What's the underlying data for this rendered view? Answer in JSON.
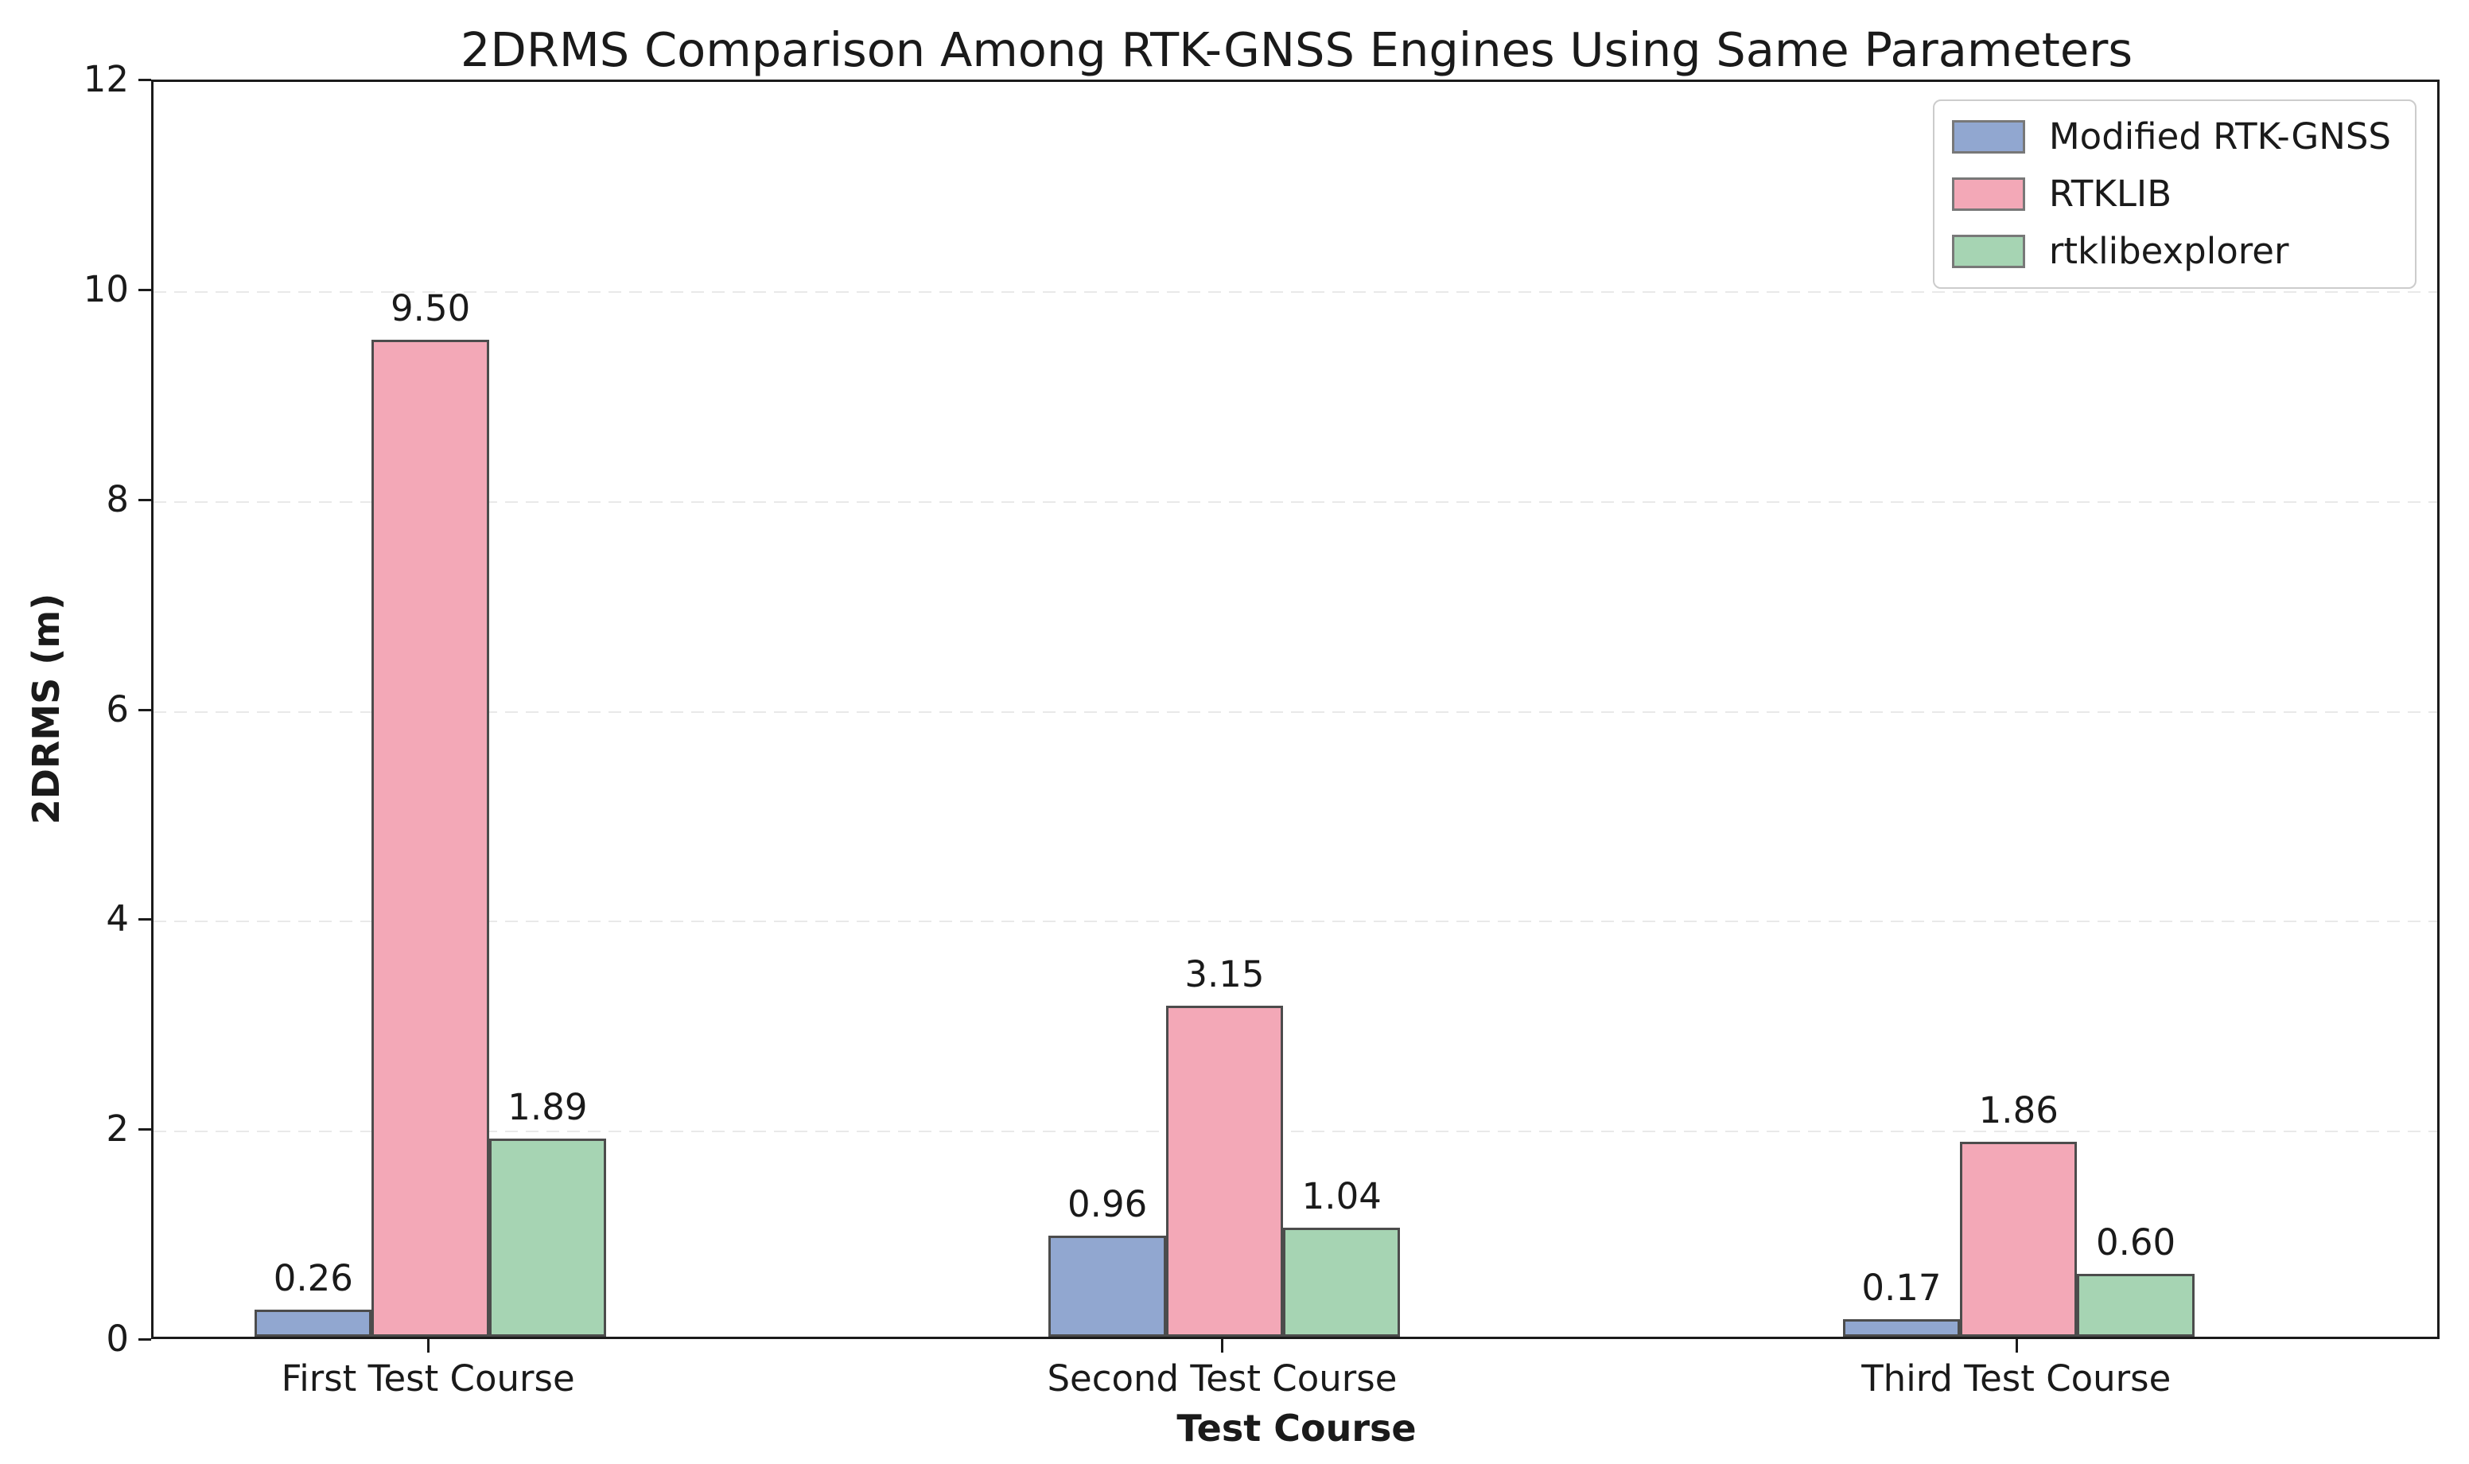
{
  "chart_data": {
    "type": "bar",
    "title": "2DRMS Comparison Among RTK-GNSS Engines Using Same Parameters",
    "xlabel": "Test Course",
    "ylabel": "2DRMS (m)",
    "categories": [
      "First Test Course",
      "Second Test Course",
      "Third Test Course"
    ],
    "series": [
      {
        "name": "Modified RTK-GNSS",
        "color": "#91a7d0",
        "values": [
          0.26,
          0.96,
          0.17
        ],
        "labels": [
          "0.26",
          "0.96",
          "0.17"
        ]
      },
      {
        "name": "RTKLIB",
        "color": "#f3a8b7",
        "values": [
          9.5,
          3.15,
          1.86
        ],
        "labels": [
          "9.50",
          "3.15",
          "1.86"
        ]
      },
      {
        "name": "rtklibexplorer",
        "color": "#a6d4b3",
        "values": [
          1.89,
          1.04,
          0.6
        ],
        "labels": [
          "1.89",
          "1.04",
          "0.60"
        ]
      }
    ],
    "ylim": [
      0,
      12
    ],
    "yticks": [
      0,
      2,
      4,
      6,
      8,
      10,
      12
    ],
    "grid": "horizontal-dashed",
    "legend_position": "upper-right",
    "colors": {
      "bar_edge": "#4c4c4c",
      "axis_frame": "#1b1b1b",
      "grid_line": "#e9e9e9",
      "text": "#1a1a1a",
      "legend_border": "#cccccc"
    }
  }
}
